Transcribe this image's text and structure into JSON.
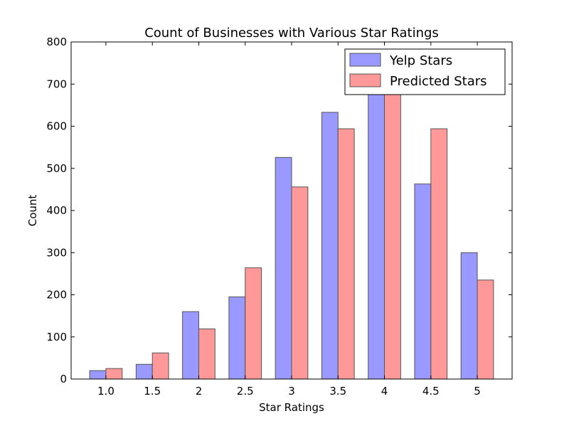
{
  "chart_data": {
    "type": "bar",
    "title": "Count of Businesses with Various Star Ratings",
    "xlabel": "Star Ratings",
    "ylabel": "Count",
    "categories": [
      "1.0",
      "1.5",
      "2",
      "2.5",
      "3",
      "3.5",
      "4",
      "4.5",
      "5"
    ],
    "series": [
      {
        "name": "Yelp Stars",
        "color": "#9999ff",
        "values": [
          20,
          35,
          160,
          195,
          526,
          633,
          680,
          463,
          300
        ]
      },
      {
        "name": "Predicted Stars",
        "color": "#ff9999",
        "values": [
          25,
          62,
          119,
          264,
          456,
          594,
          680,
          594,
          235
        ]
      }
    ],
    "ylim": [
      0,
      800
    ],
    "yticks": [
      0,
      100,
      200,
      300,
      400,
      500,
      600,
      700,
      800
    ],
    "grid": false,
    "legend_position": "top-right"
  }
}
